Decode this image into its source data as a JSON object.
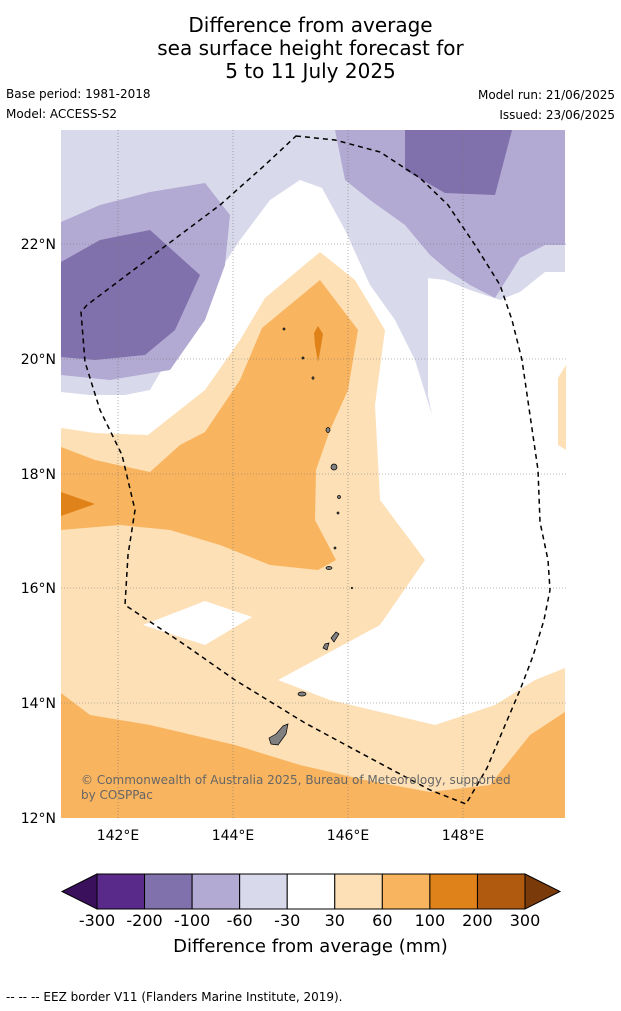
{
  "title": {
    "line1": "Difference from average",
    "line2": "sea surface height forecast for",
    "line3": "5 to 11 July 2025"
  },
  "meta": {
    "base_period": "Base period: 1981-2018",
    "model": "Model: ACCESS-S2",
    "model_run": "Model run: 21/06/2025",
    "issued": "Issued: 23/06/2025"
  },
  "map": {
    "longitude_ticks": [
      "142°E",
      "144°E",
      "146°E",
      "148°E"
    ],
    "latitude_ticks": [
      "22°N",
      "20°N",
      "18°N",
      "16°N",
      "14°N",
      "12°N"
    ],
    "lon_range": [
      141,
      149.8
    ],
    "lat_range": [
      12,
      24
    ],
    "copyright_line1": "© Commonwealth of Australia 2025, Bureau of Meteorology, supported",
    "copyright_line2": "by COSPPac"
  },
  "colorbar": {
    "title": "Difference from average (mm)",
    "tick_labels": [
      "-300",
      "-200",
      "-100",
      "-60",
      "-30",
      "30",
      "60",
      "100",
      "200",
      "300"
    ],
    "colors": {
      "below_min": "#3a0f5c",
      "bins": [
        "#5a2a8a",
        "#8070ac",
        "#b2aad2",
        "#d9d9ec",
        "#ffffff",
        "#fde0b6",
        "#f9b45f",
        "#e0821a",
        "#b05a10"
      ],
      "above_max": "#7a3a0a"
    }
  },
  "footer": {
    "eez_legend": "--  --  -- EEZ border V11 (Flanders Marine Institute, 2019)."
  }
}
